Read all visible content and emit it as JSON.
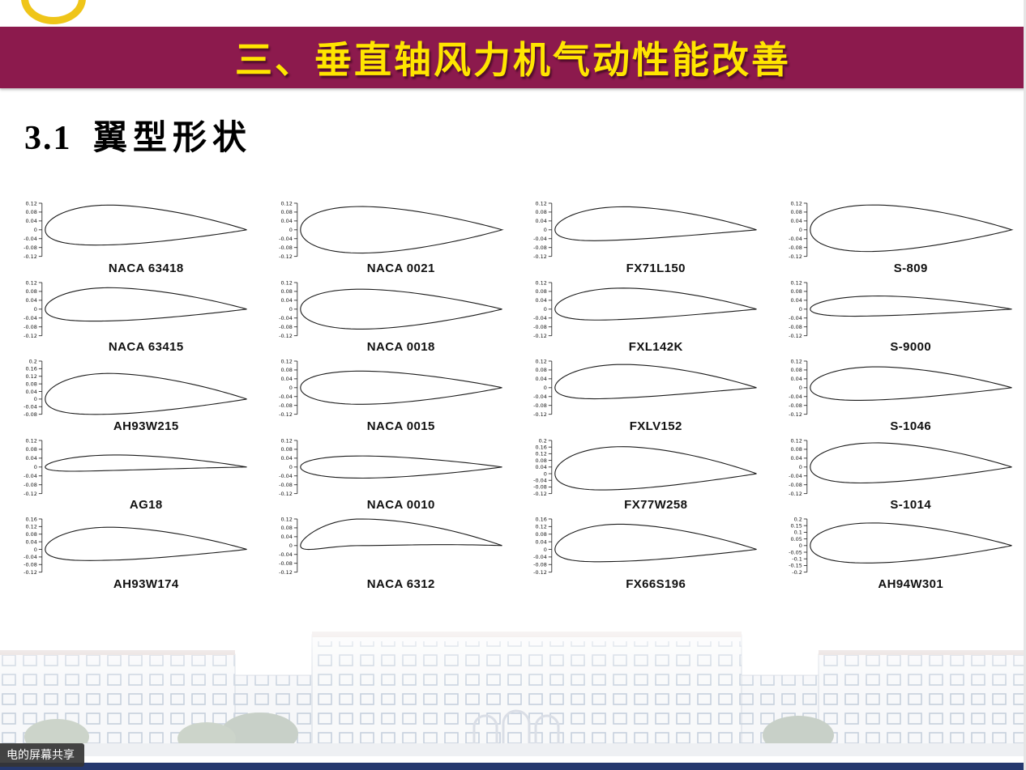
{
  "banner": {
    "title": "三、垂直轴风力机气动性能改善",
    "background_color": "#8c1a4d",
    "text_color": "#ffe500"
  },
  "section": {
    "number": "3.1",
    "title": "翼型形状"
  },
  "overlay": {
    "screen_share_label": "电的屏幕共享"
  },
  "footer": {
    "bar_color": "#25386e"
  },
  "chart_data": {
    "type": "diagram",
    "title": "翼型形状",
    "layout": {
      "rows": 5,
      "columns": 4,
      "order": "row-major"
    },
    "airfoils": [
      {
        "name": "NACA 63418",
        "y_ticks": [
          "0.12",
          "0.08",
          "0.04",
          "0",
          "-0.04",
          "-0.08",
          "-0.12"
        ],
        "thickness": 0.18,
        "camber": 0.022,
        "camber_pos": 0.35
      },
      {
        "name": "NACA 0021",
        "y_ticks": [
          "0.12",
          "0.08",
          "0.04",
          "0",
          "-0.04",
          "-0.08",
          "-0.12"
        ],
        "thickness": 0.21,
        "camber": 0,
        "camber_pos": 0.3
      },
      {
        "name": "FX71L150",
        "y_ticks": [
          "0.12",
          "0.08",
          "0.04",
          "0",
          "-0.04",
          "-0.08",
          "-0.12"
        ],
        "thickness": 0.15,
        "camber": 0.03,
        "camber_pos": 0.4
      },
      {
        "name": "S-809",
        "y_ticks": [
          "0.12",
          "0.08",
          "0.04",
          "0",
          "-0.04",
          "-0.08",
          "-0.12"
        ],
        "thickness": 0.21,
        "camber": 0.008,
        "camber_pos": 0.45
      },
      {
        "name": "NACA 63415",
        "y_ticks": [
          "0.12",
          "0.08",
          "0.04",
          "0",
          "-0.04",
          "-0.08",
          "-0.12"
        ],
        "thickness": 0.15,
        "camber": 0.022,
        "camber_pos": 0.35
      },
      {
        "name": "NACA 0018",
        "y_ticks": [
          "0.12",
          "0.08",
          "0.04",
          "0",
          "-0.04",
          "-0.08",
          "-0.12"
        ],
        "thickness": 0.18,
        "camber": 0,
        "camber_pos": 0.3
      },
      {
        "name": "FXL142K",
        "y_ticks": [
          "0.12",
          "0.08",
          "0.04",
          "0",
          "-0.04",
          "-0.08",
          "-0.12"
        ],
        "thickness": 0.142,
        "camber": 0.025,
        "camber_pos": 0.4
      },
      {
        "name": "S-9000",
        "y_ticks": [
          "0.12",
          "0.08",
          "0.04",
          "0",
          "-0.04",
          "-0.08",
          "-0.12"
        ],
        "thickness": 0.09,
        "camber": 0.015,
        "camber_pos": 0.4
      },
      {
        "name": "AH93W215",
        "y_ticks": [
          "0.2",
          "0.16",
          "0.12",
          "0.08",
          "0.04",
          "0",
          "-0.04",
          "-0.08"
        ],
        "thickness": 0.215,
        "camber": 0.028,
        "camber_pos": 0.35
      },
      {
        "name": "NACA 0015",
        "y_ticks": [
          "0.12",
          "0.08",
          "0.04",
          "0",
          "-0.04",
          "-0.08",
          "-0.12"
        ],
        "thickness": 0.15,
        "camber": 0,
        "camber_pos": 0.3
      },
      {
        "name": "FXLV152",
        "y_ticks": [
          "0.12",
          "0.08",
          "0.04",
          "0",
          "-0.04",
          "-0.08",
          "-0.12"
        ],
        "thickness": 0.152,
        "camber": 0.03,
        "camber_pos": 0.4
      },
      {
        "name": "S-1046",
        "y_ticks": [
          "0.12",
          "0.08",
          "0.04",
          "0",
          "-0.04",
          "-0.08",
          "-0.12"
        ],
        "thickness": 0.15,
        "camber": 0.02,
        "camber_pos": 0.4
      },
      {
        "name": "AG18",
        "y_ticks": [
          "0.12",
          "0.08",
          "0.04",
          "0",
          "-0.04",
          "-0.08",
          "-0.12"
        ],
        "thickness": 0.07,
        "camber": 0.02,
        "camber_pos": 0.4
      },
      {
        "name": "NACA 0010",
        "y_ticks": [
          "0.12",
          "0.08",
          "0.04",
          "0",
          "-0.04",
          "-0.08",
          "-0.12"
        ],
        "thickness": 0.1,
        "camber": 0,
        "camber_pos": 0.3
      },
      {
        "name": "FX77W258",
        "y_ticks": [
          "0.2",
          "0.16",
          "0.12",
          "0.08",
          "0.04",
          "0",
          "-0.04",
          "-0.08",
          "-0.12"
        ],
        "thickness": 0.258,
        "camber": 0.035,
        "camber_pos": 0.4
      },
      {
        "name": "S-1014",
        "y_ticks": [
          "0.12",
          "0.08",
          "0.04",
          "0",
          "-0.04",
          "-0.08",
          "-0.12"
        ],
        "thickness": 0.18,
        "camber": 0.02,
        "camber_pos": 0.4
      },
      {
        "name": "AH93W174",
        "y_ticks": [
          "0.16",
          "0.12",
          "0.08",
          "0.04",
          "0",
          "-0.04",
          "-0.08",
          "-0.12"
        ],
        "thickness": 0.174,
        "camber": 0.03,
        "camber_pos": 0.35
      },
      {
        "name": "NACA 6312",
        "y_ticks": [
          "0.12",
          "0.08",
          "0.04",
          "0",
          "-0.04",
          "-0.08",
          "-0.12"
        ],
        "thickness": 0.12,
        "camber": 0.06,
        "camber_pos": 0.3
      },
      {
        "name": "FX66S196",
        "y_ticks": [
          "0.16",
          "0.12",
          "0.08",
          "0.04",
          "0",
          "-0.04",
          "-0.08",
          "-0.12"
        ],
        "thickness": 0.196,
        "camber": 0.035,
        "camber_pos": 0.35
      },
      {
        "name": "AH94W301",
        "y_ticks": [
          "0.2",
          "0.15",
          "0.1",
          "0.05",
          "0",
          "-0.05",
          "-0.1",
          "-0.15",
          "-0.2"
        ],
        "thickness": 0.301,
        "camber": 0.02,
        "camber_pos": 0.35
      }
    ]
  }
}
